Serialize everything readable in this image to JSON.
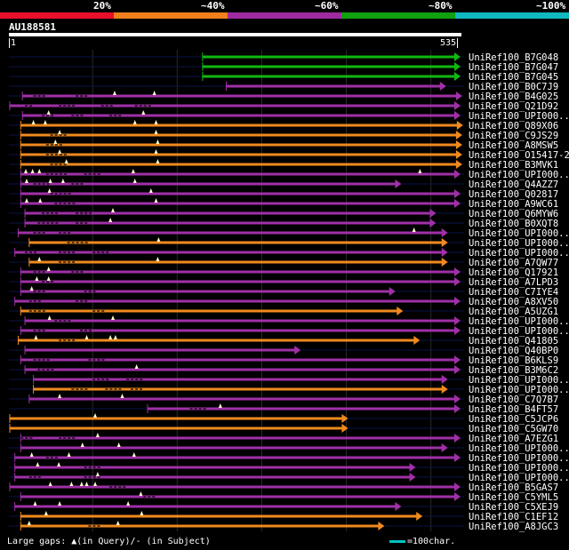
{
  "query_id": "AU188581",
  "legend": {
    "segments": [
      {
        "label": "20%",
        "color": "#e8102a"
      },
      {
        "label": "~40%",
        "color": "#f07f1c"
      },
      {
        "label": "~60%",
        "color": "#a02aa0"
      },
      {
        "label": "~80%",
        "color": "#10a010"
      },
      {
        "label": "~100%",
        "color": "#10b8c0"
      }
    ]
  },
  "axis": {
    "start_label": "1",
    "end_label": "535"
  },
  "footer": {
    "gaps_text": "Large gaps: ▲(in Query)/- (in Subject)",
    "scale_text": "=100char."
  },
  "chart_data": {
    "type": "alignment",
    "title": "AU188581",
    "query_length": 535,
    "x_range": [
      1,
      535
    ],
    "hits": [
      {
        "name": "UniRef100_B7G048",
        "start": 230,
        "end": 535,
        "color": "green",
        "gaps_q": [],
        "gaps_s": []
      },
      {
        "name": "UniRef100_B7G047",
        "start": 230,
        "end": 535,
        "color": "green",
        "gaps_q": [],
        "gaps_s": []
      },
      {
        "name": "UniRef100_B7G045",
        "start": 230,
        "end": 535,
        "color": "green",
        "gaps_q": [],
        "gaps_s": []
      },
      {
        "name": "UniRef100_B0C7J9",
        "start": 258,
        "end": 518,
        "color": "purple",
        "gaps_q": [],
        "gaps_s": []
      },
      {
        "name": "UniRef100_B4G025",
        "start": 17,
        "end": 537,
        "color": "purple",
        "gaps_q": [
          126,
          173
        ],
        "gaps_s": [
          [
            30,
            45
          ],
          [
            80,
            95
          ]
        ]
      },
      {
        "name": "UniRef100_Q21D92",
        "start": 2,
        "end": 535,
        "color": "purple",
        "gaps_q": [],
        "gaps_s": [
          [
            20,
            30
          ],
          [
            60,
            80
          ],
          [
            110,
            125
          ],
          [
            150,
            170
          ]
        ]
      },
      {
        "name": "UniRef100_UPI000..1",
        "start": 17,
        "end": 535,
        "color": "purple",
        "gaps_q": [
          48,
          160
        ],
        "gaps_s": [
          [
            40,
            55
          ],
          [
            75,
            90
          ],
          [
            120,
            135
          ]
        ]
      },
      {
        "name": "UniRef100_Q89X06",
        "start": 15,
        "end": 538,
        "color": "orange",
        "gaps_q": [
          30,
          44,
          150,
          175
        ],
        "gaps_s": []
      },
      {
        "name": "UniRef100_C9JS29",
        "start": 15,
        "end": 537,
        "color": "orange",
        "gaps_q": [
          61,
          175
        ],
        "gaps_s": [
          [
            50,
            70
          ]
        ]
      },
      {
        "name": "UniRef100_A8MSW5",
        "start": 15,
        "end": 537,
        "color": "orange",
        "gaps_q": [
          56,
          177
        ],
        "gaps_s": [
          [
            45,
            65
          ]
        ]
      },
      {
        "name": "UniRef100_O15417-2",
        "start": 15,
        "end": 537,
        "color": "orange",
        "gaps_q": [
          61,
          175
        ],
        "gaps_s": [
          [
            45,
            70
          ]
        ]
      },
      {
        "name": "UniRef100_B3MVK1",
        "start": 15,
        "end": 537,
        "color": "orange",
        "gaps_q": [
          69,
          177
        ],
        "gaps_s": [
          [
            50,
            70
          ]
        ]
      },
      {
        "name": "UniRef100_UPI000..2",
        "start": 15,
        "end": 535,
        "color": "purple",
        "gaps_q": [
          21,
          29,
          37,
          148,
          487
        ],
        "gaps_s": [
          [
            45,
            70
          ],
          [
            90,
            110
          ]
        ]
      },
      {
        "name": "UniRef100_Q4AZZ7",
        "start": 15,
        "end": 465,
        "color": "purple",
        "gaps_q": [
          22,
          50,
          65,
          150
        ],
        "gaps_s": [
          [
            30,
            50
          ],
          [
            75,
            90
          ]
        ]
      },
      {
        "name": "UniRef100_Q02817",
        "start": 15,
        "end": 535,
        "color": "purple",
        "gaps_q": [
          49,
          169
        ],
        "gaps_s": [
          [
            50,
            75
          ]
        ]
      },
      {
        "name": "UniRef100_A9WC61",
        "start": 15,
        "end": 535,
        "color": "purple",
        "gaps_q": [
          22,
          38,
          175
        ],
        "gaps_s": [
          [
            55,
            80
          ]
        ]
      },
      {
        "name": "UniRef100_Q6MYW6",
        "start": 20,
        "end": 506,
        "color": "purple",
        "gaps_q": [
          124
        ],
        "gaps_s": [
          [
            40,
            60
          ],
          [
            80,
            100
          ]
        ]
      },
      {
        "name": "UniRef100_B0XQT8",
        "start": 20,
        "end": 506,
        "color": "purple",
        "gaps_q": [
          121
        ],
        "gaps_s": [
          [
            35,
            60
          ],
          [
            80,
            95
          ]
        ]
      },
      {
        "name": "UniRef100_UPI000..3",
        "start": 12,
        "end": 520,
        "color": "purple",
        "gaps_q": [
          480
        ],
        "gaps_s": [
          [
            30,
            45
          ],
          [
            60,
            75
          ]
        ]
      },
      {
        "name": "UniRef100_UPI000..4",
        "start": 25,
        "end": 520,
        "color": "orange",
        "gaps_q": [
          178
        ],
        "gaps_s": [
          [
            70,
            95
          ]
        ]
      },
      {
        "name": "UniRef100_UPI000..5",
        "start": 8,
        "end": 520,
        "color": "purple",
        "gaps_q": [],
        "gaps_s": [
          [
            20,
            35
          ],
          [
            60,
            80
          ],
          [
            100,
            120
          ]
        ]
      },
      {
        "name": "UniRef100_A7QW77",
        "start": 25,
        "end": 520,
        "color": "orange",
        "gaps_q": [
          37,
          177
        ],
        "gaps_s": [
          [
            60,
            80
          ]
        ]
      },
      {
        "name": "UniRef100_Q17921",
        "start": 15,
        "end": 535,
        "color": "purple",
        "gaps_q": [
          48
        ],
        "gaps_s": [
          [
            30,
            45
          ],
          [
            75,
            90
          ]
        ]
      },
      {
        "name": "UniRef100_A7LPD3",
        "start": 15,
        "end": 535,
        "color": "purple",
        "gaps_q": [
          34,
          48
        ],
        "gaps_s": [
          [
            40,
            55
          ]
        ]
      },
      {
        "name": "UniRef100_C7IYE4",
        "start": 15,
        "end": 458,
        "color": "purple",
        "gaps_q": [
          28
        ],
        "gaps_s": [
          [
            30,
            45
          ],
          [
            90,
            105
          ]
        ]
      },
      {
        "name": "UniRef100_A8XV50",
        "start": 8,
        "end": 535,
        "color": "purple",
        "gaps_q": [],
        "gaps_s": [
          [
            25,
            40
          ],
          [
            80,
            95
          ]
        ]
      },
      {
        "name": "UniRef100_A5UZG1",
        "start": 15,
        "end": 467,
        "color": "orange",
        "gaps_q": [],
        "gaps_s": [
          [
            25,
            45
          ],
          [
            100,
            115
          ]
        ]
      },
      {
        "name": "UniRef100_UPI000..6",
        "start": 20,
        "end": 535,
        "color": "purple",
        "gaps_q": [
          49,
          124
        ],
        "gaps_s": [
          [
            55,
            75
          ]
        ]
      },
      {
        "name": "UniRef100_UPI000..7",
        "start": 15,
        "end": 535,
        "color": "purple",
        "gaps_q": [],
        "gaps_s": [
          [
            30,
            45
          ],
          [
            85,
            100
          ]
        ]
      },
      {
        "name": "UniRef100_Q41805",
        "start": 12,
        "end": 487,
        "color": "orange",
        "gaps_q": [
          33,
          93,
          121,
          127
        ],
        "gaps_s": [
          [
            60,
            80
          ]
        ]
      },
      {
        "name": "UniRef100_Q40BP0",
        "start": 20,
        "end": 346,
        "color": "purple",
        "gaps_q": [],
        "gaps_s": []
      },
      {
        "name": "UniRef100_B6KLS9",
        "start": 15,
        "end": 535,
        "color": "purple",
        "gaps_q": [],
        "gaps_s": [
          [
            30,
            50
          ],
          [
            95,
            115
          ]
        ]
      },
      {
        "name": "UniRef100_B3M6C2",
        "start": 20,
        "end": 535,
        "color": "purple",
        "gaps_q": [
          152
        ],
        "gaps_s": [
          [
            35,
            55
          ]
        ]
      },
      {
        "name": "UniRef100_UPI000..8",
        "start": 30,
        "end": 520,
        "color": "purple",
        "gaps_q": [],
        "gaps_s": [
          [
            100,
            120
          ],
          [
            140,
            160
          ]
        ]
      },
      {
        "name": "UniRef100_UPI000..9",
        "start": 30,
        "end": 520,
        "color": "orange",
        "gaps_q": [],
        "gaps_s": [
          [
            75,
            95
          ],
          [
            115,
            135
          ],
          [
            145,
            160
          ]
        ]
      },
      {
        "name": "UniRef100_C7Q7B7",
        "start": 25,
        "end": 535,
        "color": "purple",
        "gaps_q": [
          61,
          135
        ],
        "gaps_s": []
      },
      {
        "name": "UniRef100_B4FT57",
        "start": 165,
        "end": 535,
        "color": "purple",
        "gaps_q": [
          251
        ],
        "gaps_s": [
          [
            215,
            235
          ]
        ]
      },
      {
        "name": "UniRef100_C5JCP6",
        "start": 2,
        "end": 402,
        "color": "orange",
        "gaps_q": [
          103
        ],
        "gaps_s": []
      },
      {
        "name": "UniRef100_C5GW70",
        "start": 2,
        "end": 402,
        "color": "orange",
        "gaps_q": [],
        "gaps_s": []
      },
      {
        "name": "UniRef100_A7EZG1",
        "start": 15,
        "end": 535,
        "color": "purple",
        "gaps_q": [
          106
        ],
        "gaps_s": [
          [
            15,
            30
          ],
          [
            60,
            80
          ]
        ]
      },
      {
        "name": "UniRef100_UPI000..10",
        "start": 15,
        "end": 520,
        "color": "purple",
        "gaps_q": [
          88,
          131
        ],
        "gaps_s": []
      },
      {
        "name": "UniRef100_UPI000..11",
        "start": 8,
        "end": 535,
        "color": "purple",
        "gaps_q": [
          28,
          72,
          149
        ],
        "gaps_s": [
          [
            45,
            60
          ]
        ]
      },
      {
        "name": "UniRef100_UPI000..12",
        "start": 8,
        "end": 482,
        "color": "purple",
        "gaps_q": [
          35,
          60
        ],
        "gaps_s": [
          [
            90,
            110
          ]
        ]
      },
      {
        "name": "UniRef100_UPI000..13",
        "start": 8,
        "end": 482,
        "color": "purple",
        "gaps_q": [
          106
        ],
        "gaps_s": [
          [
            25,
            40
          ],
          [
            90,
            110
          ]
        ]
      },
      {
        "name": "UniRef100_B5GAS7",
        "start": 2,
        "end": 535,
        "color": "purple",
        "gaps_q": [
          50,
          75,
          87,
          93,
          103
        ],
        "gaps_s": [
          [
            120,
            140
          ]
        ]
      },
      {
        "name": "UniRef100_C5YML5",
        "start": 15,
        "end": 535,
        "color": "purple",
        "gaps_q": [
          157
        ],
        "gaps_s": [
          [
            160,
            175
          ]
        ]
      },
      {
        "name": "UniRef100_C5XEJ9",
        "start": 8,
        "end": 465,
        "color": "purple",
        "gaps_q": [
          32,
          61,
          142
        ],
        "gaps_s": []
      },
      {
        "name": "UniRef100_C1EF12",
        "start": 15,
        "end": 490,
        "color": "orange",
        "gaps_q": [
          45,
          158
        ],
        "gaps_s": []
      },
      {
        "name": "UniRef100_A8JGC3",
        "start": 15,
        "end": 445,
        "color": "orange",
        "gaps_q": [
          25,
          130
        ],
        "gaps_s": [
          [
            95,
            110
          ]
        ]
      }
    ]
  }
}
